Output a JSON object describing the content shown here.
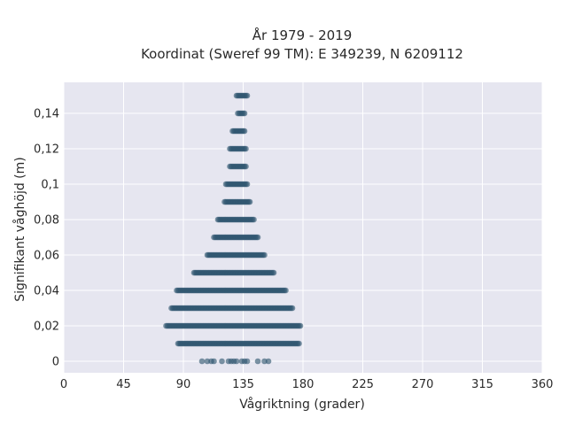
{
  "chart_data": {
    "type": "scatter",
    "title_lines": [
      "År 1979 - 2019",
      "Koordinat (Sweref 99 TM): E 349239, N 6209112"
    ],
    "xlabel": "Vågriktning (grader)",
    "ylabel": "Signifikant våghöjd (m)",
    "xlim": [
      0,
      360
    ],
    "ylim": [
      -0.0065,
      0.1575
    ],
    "x_ticks": [
      0,
      45,
      90,
      135,
      180,
      225,
      270,
      315,
      360
    ],
    "x_tick_labels": [
      "0",
      "45",
      "90",
      "135",
      "180",
      "225",
      "270",
      "315",
      "360"
    ],
    "y_ticks": [
      0,
      0.02,
      0.04,
      0.06,
      0.08,
      0.1,
      0.12,
      0.14
    ],
    "y_tick_labels": [
      "0",
      "0,02",
      "0,04",
      "0,06",
      "0,08",
      "0,1",
      "0,12",
      "0,14"
    ],
    "grid": true,
    "colors": {
      "background": "#e6e6f0",
      "grid": "#ffffff",
      "marker": "#2e5670"
    },
    "series": [
      {
        "bands": [
          {
            "y": 0.15,
            "x_min": 130,
            "x_max": 138
          },
          {
            "y": 0.14,
            "x_min": 131,
            "x_max": 136
          },
          {
            "y": 0.13,
            "x_min": 127,
            "x_max": 136
          },
          {
            "y": 0.12,
            "x_min": 125,
            "x_max": 137
          },
          {
            "y": 0.11,
            "x_min": 125,
            "x_max": 137
          },
          {
            "y": 0.1,
            "x_min": 122,
            "x_max": 138
          },
          {
            "y": 0.09,
            "x_min": 121,
            "x_max": 140
          },
          {
            "y": 0.08,
            "x_min": 116,
            "x_max": 143
          },
          {
            "y": 0.07,
            "x_min": 113,
            "x_max": 146
          },
          {
            "y": 0.06,
            "x_min": 108,
            "x_max": 151
          },
          {
            "y": 0.05,
            "x_min": 98,
            "x_max": 158
          },
          {
            "y": 0.04,
            "x_min": 85,
            "x_max": 167
          },
          {
            "y": 0.03,
            "x_min": 81,
            "x_max": 172
          },
          {
            "y": 0.02,
            "x_min": 77,
            "x_max": 178
          },
          {
            "y": 0.01,
            "x_min": 86,
            "x_max": 177
          }
        ],
        "scattered_points": [
          {
            "x": 104,
            "y": 0
          },
          {
            "x": 108,
            "y": 0
          },
          {
            "x": 111,
            "y": 0
          },
          {
            "x": 113,
            "y": 0
          },
          {
            "x": 119,
            "y": 0
          },
          {
            "x": 124,
            "y": 0
          },
          {
            "x": 126,
            "y": 0
          },
          {
            "x": 128,
            "y": 0
          },
          {
            "x": 130,
            "y": 0
          },
          {
            "x": 134,
            "y": 0
          },
          {
            "x": 136,
            "y": 0
          },
          {
            "x": 138,
            "y": 0
          },
          {
            "x": 146,
            "y": 0
          },
          {
            "x": 151,
            "y": 0
          },
          {
            "x": 154,
            "y": 0
          }
        ]
      }
    ]
  }
}
